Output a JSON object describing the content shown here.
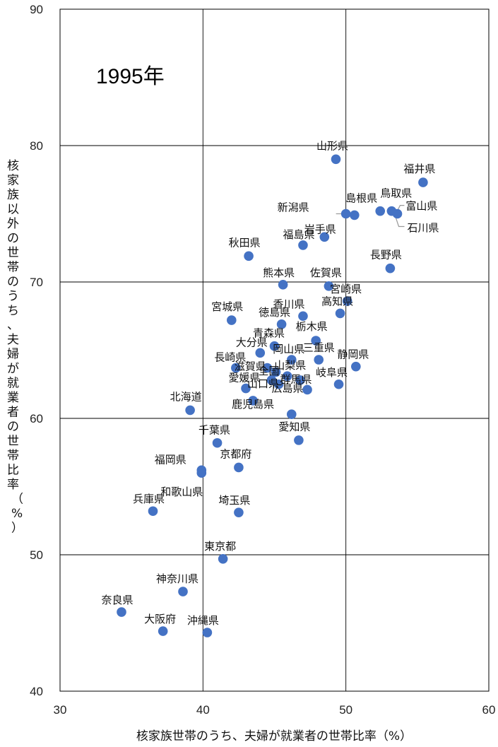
{
  "chart_data": {
    "type": "scatter",
    "title": "",
    "annotation": "1995年",
    "xlabel": "核家族世帯のうち、夫婦が就業者の世帯比率（%）",
    "ylabel": "核家族以外の世帯のうち、夫婦が就業者の世帯比率（%）",
    "xlim": [
      30,
      60
    ],
    "ylim": [
      40,
      90
    ],
    "xticks": [
      "30",
      "40",
      "50",
      "60"
    ],
    "yticks": [
      "40",
      "50",
      "60",
      "70",
      "80",
      "90"
    ],
    "grid": true,
    "legend": "none",
    "color": "#4472c4",
    "points": [
      {
        "label": "山形県",
        "x": 49.3,
        "y": 79.0
      },
      {
        "label": "福井県",
        "x": 55.4,
        "y": 77.3
      },
      {
        "label": "島根県",
        "x": 50.6,
        "y": 74.9
      },
      {
        "label": "鳥取県",
        "x": 52.4,
        "y": 75.2
      },
      {
        "label": "富山県",
        "x": 53.2,
        "y": 75.2
      },
      {
        "label": "石川県",
        "x": 53.6,
        "y": 75.0
      },
      {
        "label": "新潟県",
        "x": 50.0,
        "y": 75.0
      },
      {
        "label": "岩手県",
        "x": 48.5,
        "y": 73.3
      },
      {
        "label": "福島県",
        "x": 47.0,
        "y": 72.7
      },
      {
        "label": "秋田県",
        "x": 43.2,
        "y": 71.9
      },
      {
        "label": "長野県",
        "x": 53.1,
        "y": 71.0
      },
      {
        "label": "熊本県",
        "x": 45.6,
        "y": 69.8
      },
      {
        "label": "佐賀県",
        "x": 48.8,
        "y": 69.7
      },
      {
        "label": "宮崎県",
        "x": 50.1,
        "y": 68.6
      },
      {
        "label": "高知県",
        "x": 49.6,
        "y": 67.7
      },
      {
        "label": "香川県",
        "x": 47.0,
        "y": 67.5
      },
      {
        "label": "宮城県",
        "x": 42.0,
        "y": 67.2
      },
      {
        "label": "徳島県",
        "x": 45.5,
        "y": 66.9
      },
      {
        "label": "栃木県",
        "x": 47.9,
        "y": 65.7
      },
      {
        "label": "青森県",
        "x": 45.0,
        "y": 65.3
      },
      {
        "label": "大分県",
        "x": 44.0,
        "y": 64.8
      },
      {
        "label": "岡山県",
        "x": 46.2,
        "y": 64.3
      },
      {
        "label": "三重県",
        "x": 48.1,
        "y": 64.3
      },
      {
        "label": "静岡県",
        "x": 50.7,
        "y": 63.8
      },
      {
        "label": "長崎県",
        "x": 42.3,
        "y": 63.7
      },
      {
        "label": "滋賀県",
        "x": 44.5,
        "y": 63.7
      },
      {
        "label": "奈良",
        "x": 45.1,
        "y": 63.4
      },
      {
        "label": "山梨県",
        "x": 45.9,
        "y": 63.1
      },
      {
        "label": "山口県",
        "x": 44.8,
        "y": 62.8
      },
      {
        "label": "群馬県",
        "x": 46.8,
        "y": 62.8
      },
      {
        "label": "岐阜県",
        "x": 49.5,
        "y": 62.5
      },
      {
        "label": "全国",
        "x": 45.3,
        "y": 62.5
      },
      {
        "label": "愛媛県",
        "x": 43.0,
        "y": 62.2
      },
      {
        "label": "広島県",
        "x": 47.3,
        "y": 62.1
      },
      {
        "label": "鹿児島県",
        "x": 43.5,
        "y": 61.3
      },
      {
        "label": "北海道",
        "x": 39.1,
        "y": 60.6
      },
      {
        "label": "佐賀",
        "x": 46.2,
        "y": 60.3
      },
      {
        "label": "愛知県",
        "x": 46.7,
        "y": 58.4
      },
      {
        "label": "千葉県",
        "x": 41.0,
        "y": 58.2
      },
      {
        "label": "京都府",
        "x": 42.5,
        "y": 56.4
      },
      {
        "label": "福岡県",
        "x": 39.9,
        "y": 56.2
      },
      {
        "label": "和歌山県",
        "x": 39.9,
        "y": 56.0
      },
      {
        "label": "兵庫県",
        "x": 36.5,
        "y": 53.2
      },
      {
        "label": "埼玉県",
        "x": 42.5,
        "y": 53.1
      },
      {
        "label": "東京都",
        "x": 41.4,
        "y": 49.7
      },
      {
        "label": "神奈川県",
        "x": 38.6,
        "y": 47.3
      },
      {
        "label": "奈良県",
        "x": 34.3,
        "y": 45.8
      },
      {
        "label": "大阪府",
        "x": 37.2,
        "y": 44.4
      },
      {
        "label": "沖縄県",
        "x": 40.3,
        "y": 44.3
      }
    ],
    "labels_shown": [
      {
        "text": "山形県",
        "point": 0
      },
      {
        "text": "福井県",
        "point": 1
      },
      {
        "text": "島根県",
        "point": 2
      },
      {
        "text": "鳥取県",
        "point": 3
      },
      {
        "text": "富山県",
        "point": 4
      },
      {
        "text": "石川県",
        "point": 5
      },
      {
        "text": "新潟県",
        "point": 6
      },
      {
        "text": "岩手県",
        "point": 7
      },
      {
        "text": "福島県",
        "point": 8
      },
      {
        "text": "秋田県",
        "point": 9
      },
      {
        "text": "長野県",
        "point": 10
      },
      {
        "text": "熊本県",
        "point": 11
      },
      {
        "text": "佐賀県",
        "point": 12
      },
      {
        "text": "宮崎県",
        "point": 13
      },
      {
        "text": "高知県",
        "point": 14
      },
      {
        "text": "香川県",
        "point": 15
      },
      {
        "text": "宮城県",
        "point": 16
      },
      {
        "text": "徳島県",
        "point": 17
      },
      {
        "text": "栃木県",
        "point": 18
      },
      {
        "text": "青森県",
        "point": 19
      },
      {
        "text": "大分県",
        "point": 20
      },
      {
        "text": "岡山県",
        "point": 21
      },
      {
        "text": "三重県",
        "point": 22
      },
      {
        "text": "静岡県",
        "point": 23
      },
      {
        "text": "長崎県",
        "point": 24
      },
      {
        "text": "滋賀県",
        "point": 25
      },
      {
        "text": "山梨県",
        "point": 27
      },
      {
        "text": "山口県",
        "point": 28
      },
      {
        "text": "群馬県",
        "point": 29
      },
      {
        "text": "岐阜県",
        "point": 30
      },
      {
        "text": "全国",
        "point": 31
      },
      {
        "text": "愛媛県",
        "point": 32
      },
      {
        "text": "広島県",
        "point": 33
      },
      {
        "text": "鹿児島県",
        "point": 34
      },
      {
        "text": "北海道",
        "point": 35
      },
      {
        "text": "愛知県",
        "point": 37
      },
      {
        "text": "千葉県",
        "point": 38
      },
      {
        "text": "京都府",
        "point": 39
      },
      {
        "text": "福岡県",
        "point": 40
      },
      {
        "text": "和歌山県",
        "point": 41
      },
      {
        "text": "兵庫県",
        "point": 42
      },
      {
        "text": "埼玉県",
        "point": 43
      },
      {
        "text": "東京都",
        "point": 44
      },
      {
        "text": "神奈川県",
        "point": 45
      },
      {
        "text": "奈良県",
        "point": 46
      },
      {
        "text": "大阪府",
        "point": 47
      },
      {
        "text": "沖縄県",
        "point": 48
      }
    ]
  }
}
